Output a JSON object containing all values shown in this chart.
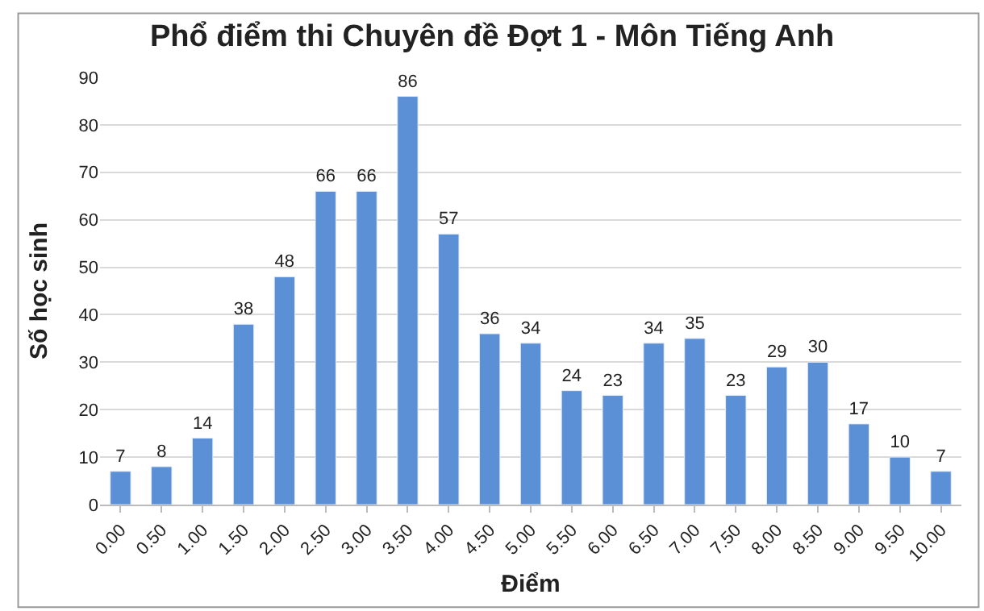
{
  "chart_data": {
    "type": "bar",
    "title": "Phổ điểm thi Chuyên đề Đợt 1 - Môn Tiếng Anh",
    "xlabel": "Điểm",
    "ylabel": "Số học sinh",
    "categories": [
      "0.00",
      "0.50",
      "1.00",
      "1.50",
      "2.00",
      "2.50",
      "3.00",
      "3.50",
      "4.00",
      "4.50",
      "5.00",
      "5.50",
      "6.00",
      "6.50",
      "7.00",
      "7.50",
      "8.00",
      "8.50",
      "9.00",
      "9.50",
      "10.00"
    ],
    "values": [
      7,
      8,
      14,
      38,
      48,
      66,
      66,
      86,
      57,
      36,
      34,
      24,
      23,
      34,
      35,
      23,
      29,
      30,
      17,
      10,
      7
    ],
    "color": "#5b8fd6",
    "ylim": [
      0,
      90
    ],
    "yticks": [
      0,
      10,
      20,
      30,
      40,
      50,
      60,
      70,
      80,
      90
    ],
    "grid": "y",
    "data_labels": true,
    "legend": false
  }
}
